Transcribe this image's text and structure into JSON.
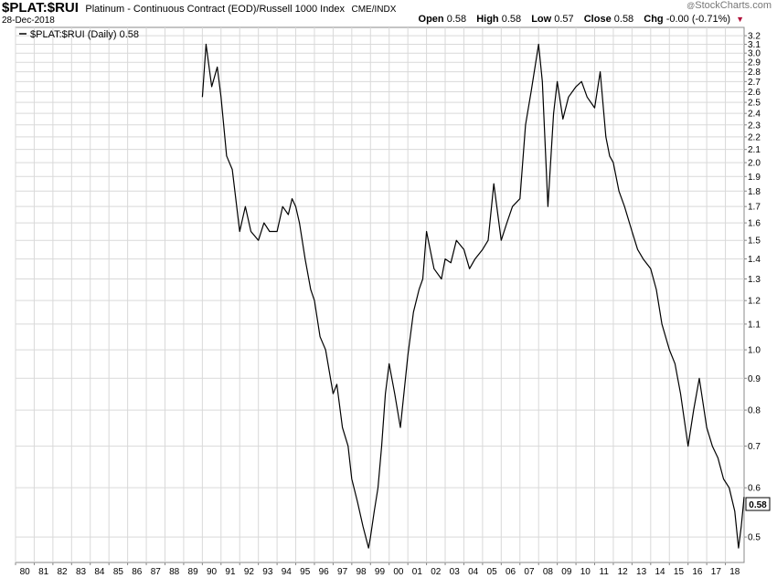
{
  "header": {
    "ticker": "$PLAT:$RUI",
    "description": "Platinum - Continuous Contract (EOD)/Russell 1000 Index",
    "exchange": "CME/INDX",
    "date": "28-Dec-2018",
    "brand": "StockCharts.com",
    "brand_prefix": "@",
    "ohlc": {
      "open_label": "Open",
      "open": "0.58",
      "high_label": "High",
      "high": "0.58",
      "low_label": "Low",
      "low": "0.57",
      "close_label": "Close",
      "close": "0.58",
      "chg_label": "Chg",
      "chg": "-0.00 (-0.71%)",
      "chg_arrow": "▼"
    }
  },
  "chart_data": {
    "type": "line",
    "legend": "$PLAT:$RUI (Daily) 0.58",
    "last_value_label": "0.58",
    "y_scale": "log",
    "ylim": [
      0.455,
      3.3
    ],
    "xlim": [
      1980.0,
      2019.0
    ],
    "grid": true,
    "y_axis_position": "right",
    "colors": {
      "line": "#000000",
      "grid": "#d9d9d9"
    },
    "y_ticks": [
      "0.5",
      "0.6",
      "0.7",
      "0.8",
      "0.9",
      "1.0",
      "1.1",
      "1.2",
      "1.3",
      "1.4",
      "1.5",
      "1.6",
      "1.7",
      "1.8",
      "1.9",
      "2.0",
      "2.1",
      "2.2",
      "2.3",
      "2.4",
      "2.5",
      "2.6",
      "2.7",
      "2.8",
      "2.9",
      "3.0",
      "3.1",
      "3.2"
    ],
    "x_ticks": [
      "80",
      "81",
      "82",
      "83",
      "84",
      "85",
      "86",
      "87",
      "88",
      "89",
      "90",
      "91",
      "92",
      "93",
      "94",
      "95",
      "96",
      "97",
      "98",
      "99",
      "00",
      "01",
      "02",
      "03",
      "04",
      "05",
      "06",
      "07",
      "08",
      "09",
      "10",
      "11",
      "12",
      "13",
      "14",
      "15",
      "16",
      "17",
      "18"
    ],
    "series": [
      {
        "x": [
          1990.0,
          1990.2,
          1990.5,
          1990.8,
          1991.0,
          1991.3,
          1991.6,
          1992.0,
          1992.3,
          1992.6,
          1993.0,
          1993.3,
          1993.6,
          1994.0,
          1994.3,
          1994.6,
          1994.8,
          1995.0,
          1995.2,
          1995.5,
          1995.8,
          1996.0,
          1996.3,
          1996.6,
          1997.0,
          1997.2,
          1997.5,
          1997.8,
          1998.0,
          1998.3,
          1998.6,
          1998.9,
          1999.0,
          1999.2,
          1999.4,
          1999.6,
          1999.8,
          2000.0,
          2000.3,
          2000.6,
          2001.0,
          2001.3,
          2001.6,
          2001.8,
          2002.0,
          2002.4,
          2002.8,
          2003.0,
          2003.3,
          2003.6,
          2004.0,
          2004.3,
          2004.6,
          2005.0,
          2005.3,
          2005.6,
          2006.0,
          2006.3,
          2006.6,
          2007.0,
          2007.3,
          2007.6,
          2008.0,
          2008.2,
          2008.5,
          2008.8,
          2009.0,
          2009.3,
          2009.6,
          2010.0,
          2010.3,
          2010.6,
          2011.0,
          2011.3,
          2011.6,
          2011.8,
          2012.0,
          2012.3,
          2012.6,
          2013.0,
          2013.3,
          2013.6,
          2014.0,
          2014.3,
          2014.6,
          2015.0,
          2015.3,
          2015.6,
          2016.0,
          2016.3,
          2016.6,
          2017.0,
          2017.3,
          2017.6,
          2017.9,
          2018.2,
          2018.5,
          2018.7,
          2018.85,
          2019.0
        ],
        "y": [
          2.55,
          3.1,
          2.65,
          2.85,
          2.55,
          2.05,
          1.95,
          1.55,
          1.7,
          1.55,
          1.5,
          1.6,
          1.55,
          1.55,
          1.7,
          1.65,
          1.75,
          1.7,
          1.6,
          1.4,
          1.25,
          1.2,
          1.05,
          1.0,
          0.85,
          0.88,
          0.75,
          0.7,
          0.62,
          0.57,
          0.52,
          0.48,
          0.5,
          0.55,
          0.6,
          0.7,
          0.85,
          0.95,
          0.85,
          0.75,
          0.98,
          1.15,
          1.25,
          1.3,
          1.55,
          1.35,
          1.3,
          1.4,
          1.38,
          1.5,
          1.45,
          1.35,
          1.4,
          1.45,
          1.5,
          1.85,
          1.5,
          1.6,
          1.7,
          1.75,
          2.3,
          2.6,
          3.1,
          2.7,
          1.7,
          2.4,
          2.7,
          2.35,
          2.55,
          2.65,
          2.7,
          2.55,
          2.45,
          2.8,
          2.2,
          2.05,
          2.0,
          1.8,
          1.7,
          1.55,
          1.45,
          1.4,
          1.35,
          1.25,
          1.1,
          1.0,
          0.95,
          0.85,
          0.7,
          0.8,
          0.9,
          0.75,
          0.7,
          0.67,
          0.62,
          0.6,
          0.55,
          0.48,
          0.52,
          0.58
        ]
      }
    ]
  }
}
